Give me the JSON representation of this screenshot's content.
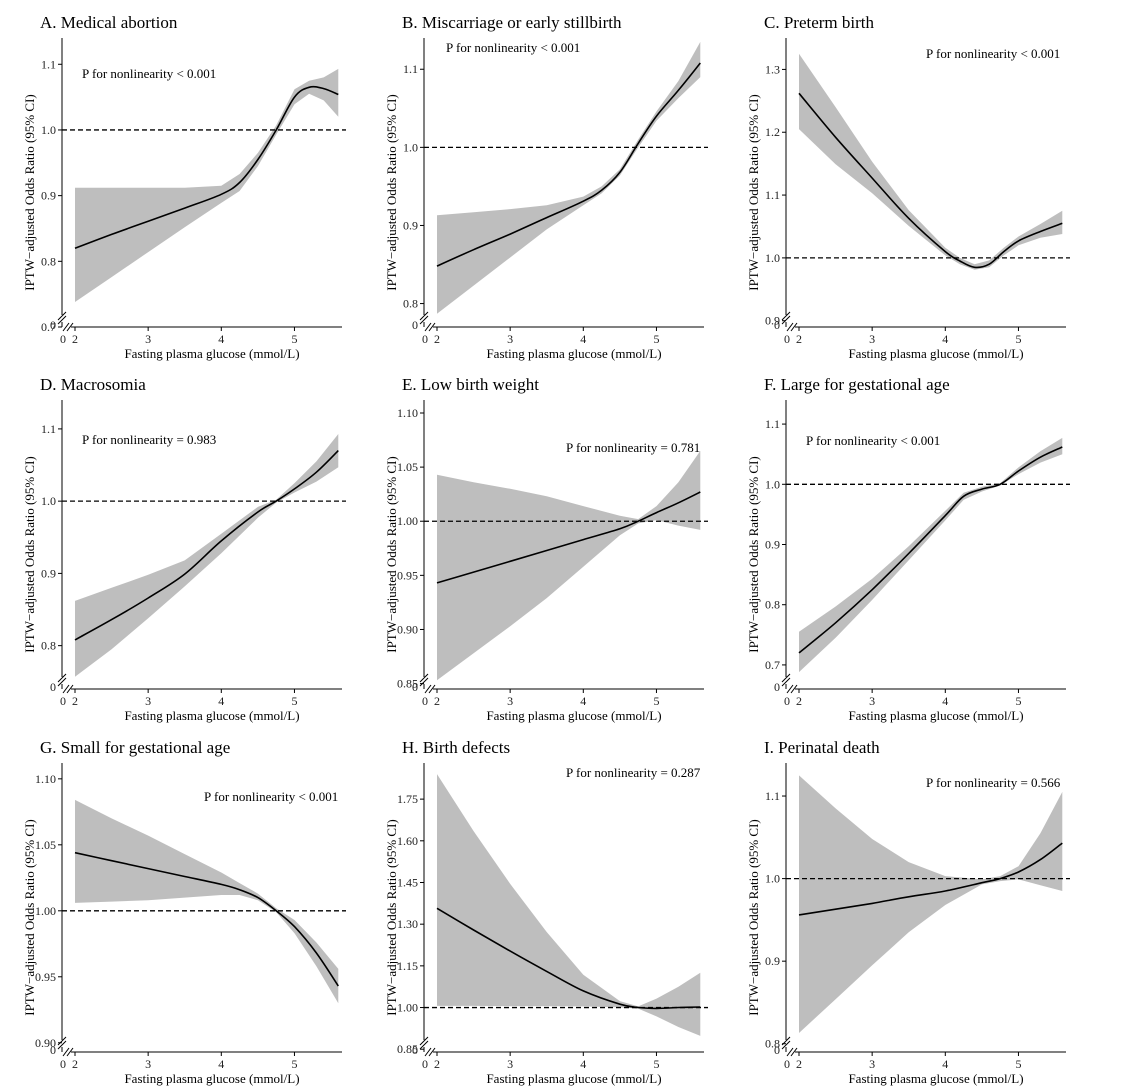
{
  "colors": {
    "band": "#bebebe",
    "line": "#000000",
    "ref_line": "#000000",
    "axis": "#000000"
  },
  "chart_data": [
    {
      "id": "A",
      "type": "line",
      "title": "A. Medical abortion",
      "xlabel": "Fasting plasma glucose (mmol/L)",
      "ylabel": "IPTW−adjusted Odds Ratio (95% CI)",
      "annotation": "P for nonlinearity < 0.001",
      "xlim": [
        2,
        5.65
      ],
      "xticks": [
        2,
        3,
        4,
        5
      ],
      "ylim": [
        0.7,
        1.14
      ],
      "yticks": [
        0.7,
        0.8,
        0.9,
        1.0,
        1.1
      ],
      "ytick_labels": [
        "0.7",
        "0.8",
        "0.9",
        "1.0",
        "1.1"
      ],
      "y_break_label": "0",
      "x_break_label": "0",
      "ref_line": 1.0,
      "x": [
        2.0,
        2.5,
        3.0,
        3.5,
        4.0,
        4.25,
        4.5,
        4.75,
        5.0,
        5.2,
        5.4,
        5.6
      ],
      "y": [
        0.82,
        0.841,
        0.861,
        0.881,
        0.902,
        0.92,
        0.955,
        1.0,
        1.05,
        1.065,
        1.063,
        1.054
      ],
      "lower": [
        0.738,
        0.776,
        0.814,
        0.852,
        0.889,
        0.907,
        0.945,
        0.993,
        1.039,
        1.055,
        1.045,
        1.02
      ],
      "upper": [
        0.912,
        0.912,
        0.912,
        0.912,
        0.915,
        0.933,
        0.965,
        1.007,
        1.062,
        1.075,
        1.08,
        1.093
      ]
    },
    {
      "id": "B",
      "type": "line",
      "title": "B. Miscarriage or early stillbirth",
      "xlabel": "Fasting plasma glucose (mmol/L)",
      "ylabel": "IPTW−adjusted Odds Ratio (95% CI)",
      "annotation": "P for nonlinearity < 0.001",
      "xlim": [
        2,
        5.65
      ],
      "xticks": [
        2,
        3,
        4,
        5
      ],
      "ylim": [
        0.77,
        1.14
      ],
      "yticks": [
        0.8,
        0.9,
        1.0,
        1.1
      ],
      "ytick_labels": [
        "0.8",
        "0.9",
        "1.0",
        "1.1"
      ],
      "y_break_label": "0",
      "x_break_label": "0",
      "ref_line": 1.0,
      "x": [
        2.0,
        2.5,
        3.0,
        3.5,
        4.0,
        4.25,
        4.5,
        4.75,
        5.0,
        5.3,
        5.6
      ],
      "y": [
        0.848,
        0.869,
        0.889,
        0.91,
        0.931,
        0.945,
        0.968,
        1.005,
        1.04,
        1.073,
        1.108
      ],
      "lower": [
        0.787,
        0.823,
        0.859,
        0.895,
        0.926,
        0.941,
        0.964,
        1.0,
        1.034,
        1.063,
        1.09
      ],
      "upper": [
        0.913,
        0.917,
        0.921,
        0.926,
        0.937,
        0.95,
        0.972,
        1.01,
        1.046,
        1.085,
        1.135
      ]
    },
    {
      "id": "C",
      "type": "line",
      "title": "C. Preterm birth",
      "xlabel": "Fasting plasma glucose (mmol/L)",
      "ylabel": "IPTW−adjusted Odds Ratio (95% CI)",
      "annotation": "P for nonlinearity < 0.001",
      "xlim": [
        2,
        5.65
      ],
      "xticks": [
        2,
        3,
        4,
        5
      ],
      "ylim": [
        0.89,
        1.35
      ],
      "yticks": [
        0.9,
        1.0,
        1.1,
        1.2,
        1.3
      ],
      "ytick_labels": [
        "0.9",
        "1.0",
        "1.1",
        "1.2",
        "1.3"
      ],
      "y_break_label": "0",
      "x_break_label": "0",
      "ref_line": 1.0,
      "x": [
        2.0,
        2.5,
        3.0,
        3.5,
        4.0,
        4.2,
        4.4,
        4.6,
        4.8,
        5.0,
        5.3,
        5.6
      ],
      "y": [
        1.262,
        1.192,
        1.127,
        1.063,
        1.01,
        0.995,
        0.985,
        0.99,
        1.01,
        1.027,
        1.042,
        1.055
      ],
      "lower": [
        1.205,
        1.149,
        1.103,
        1.051,
        1.004,
        0.99,
        0.981,
        0.985,
        1.004,
        1.02,
        1.032,
        1.038
      ],
      "upper": [
        1.325,
        1.24,
        1.153,
        1.076,
        1.016,
        1.0,
        0.99,
        0.996,
        1.016,
        1.034,
        1.054,
        1.075
      ]
    },
    {
      "id": "D",
      "type": "line",
      "title": "D. Macrosomia",
      "xlabel": "Fasting plasma glucose (mmol/L)",
      "ylabel": "IPTW−adjusted Odds Ratio (95% CI)",
      "annotation": "P for nonlinearity = 0.983",
      "xlim": [
        2,
        5.65
      ],
      "xticks": [
        2,
        3,
        4,
        5
      ],
      "ylim": [
        0.74,
        1.14
      ],
      "yticks": [
        0.8,
        0.9,
        1.0,
        1.1
      ],
      "ytick_labels": [
        "0.8",
        "0.9",
        "1.0",
        "1.1"
      ],
      "y_break_label": "0",
      "x_break_label": "0",
      "ref_line": 1.0,
      "x": [
        2.0,
        2.5,
        3.0,
        3.5,
        4.0,
        4.5,
        4.75,
        5.0,
        5.3,
        5.6
      ],
      "y": [
        0.808,
        0.836,
        0.866,
        0.899,
        0.945,
        0.985,
        1.0,
        1.017,
        1.04,
        1.07
      ],
      "lower": [
        0.757,
        0.795,
        0.838,
        0.882,
        0.928,
        0.977,
        0.998,
        1.012,
        1.027,
        1.047
      ],
      "upper": [
        0.862,
        0.88,
        0.898,
        0.918,
        0.955,
        0.992,
        1.002,
        1.025,
        1.055,
        1.093
      ]
    },
    {
      "id": "E",
      "type": "line",
      "title": "E. Low birth weight",
      "xlabel": "Fasting plasma glucose (mmol/L)",
      "ylabel": "IPTW−adjusted Odds Ratio (95% CI)",
      "annotation": "P for nonlinearity = 0.781",
      "xlim": [
        2,
        5.65
      ],
      "xticks": [
        2,
        3,
        4,
        5
      ],
      "ylim": [
        0.845,
        1.112
      ],
      "yticks": [
        0.85,
        0.9,
        0.95,
        1.0,
        1.05,
        1.1
      ],
      "ytick_labels": [
        "0.85",
        "0.90",
        "0.95",
        "1.00",
        "1.05",
        "1.10"
      ],
      "y_break_label": "0",
      "x_break_label": "0",
      "ref_line": 1.0,
      "x": [
        2.0,
        2.5,
        3.0,
        3.5,
        4.0,
        4.5,
        4.75,
        5.0,
        5.3,
        5.6
      ],
      "y": [
        0.943,
        0.953,
        0.963,
        0.973,
        0.983,
        0.993,
        1.0,
        1.008,
        1.017,
        1.027
      ],
      "lower": [
        0.853,
        0.878,
        0.903,
        0.929,
        0.958,
        0.987,
        0.998,
        1.001,
        0.996,
        0.992
      ],
      "upper": [
        1.043,
        1.036,
        1.03,
        1.023,
        1.014,
        1.005,
        1.002,
        1.014,
        1.036,
        1.065
      ]
    },
    {
      "id": "F",
      "type": "line",
      "title": "F. Large for gestational age",
      "xlabel": "Fasting plasma glucose (mmol/L)",
      "ylabel": "IPTW−adjusted Odds Ratio (95% CI)",
      "annotation": "P for nonlinearity < 0.001",
      "xlim": [
        2,
        5.65
      ],
      "xticks": [
        2,
        3,
        4,
        5
      ],
      "ylim": [
        0.66,
        1.14
      ],
      "yticks": [
        0.7,
        0.8,
        0.9,
        1.0,
        1.1
      ],
      "ytick_labels": [
        "0.7",
        "0.8",
        "0.9",
        "1.0",
        "1.1"
      ],
      "y_break_label": "0",
      "x_break_label": "0",
      "ref_line": 1.0,
      "x": [
        2.0,
        2.5,
        3.0,
        3.5,
        4.0,
        4.25,
        4.5,
        4.75,
        5.0,
        5.3,
        5.6
      ],
      "y": [
        0.72,
        0.77,
        0.825,
        0.885,
        0.948,
        0.98,
        0.992,
        1.0,
        1.022,
        1.045,
        1.062
      ],
      "lower": [
        0.688,
        0.745,
        0.808,
        0.874,
        0.94,
        0.974,
        0.988,
        0.998,
        1.017,
        1.036,
        1.05
      ],
      "upper": [
        0.755,
        0.797,
        0.843,
        0.897,
        0.956,
        0.986,
        0.996,
        1.002,
        1.028,
        1.055,
        1.077
      ]
    },
    {
      "id": "G",
      "type": "line",
      "title": "G. Small for gestational age",
      "xlabel": "Fasting plasma glucose (mmol/L)",
      "ylabel": "IPTW−adjusted Odds Ratio (95% CI)",
      "annotation": "P for nonlinearity < 0.001",
      "xlim": [
        2,
        5.65
      ],
      "xticks": [
        2,
        3,
        4,
        5
      ],
      "ylim": [
        0.893,
        1.112
      ],
      "yticks": [
        0.9,
        0.95,
        1.0,
        1.05,
        1.1
      ],
      "ytick_labels": [
        "0.90",
        "0.95",
        "1.00",
        "1.05",
        "1.10"
      ],
      "y_break_label": "0",
      "x_break_label": "0",
      "ref_line": 1.0,
      "x": [
        2.0,
        2.5,
        3.0,
        3.5,
        4.0,
        4.25,
        4.5,
        4.75,
        5.0,
        5.3,
        5.6
      ],
      "y": [
        1.044,
        1.038,
        1.032,
        1.026,
        1.02,
        1.016,
        1.01,
        1.0,
        0.988,
        0.968,
        0.943
      ],
      "lower": [
        1.006,
        1.007,
        1.008,
        1.01,
        1.012,
        1.012,
        1.008,
        0.999,
        0.983,
        0.958,
        0.93
      ],
      "upper": [
        1.084,
        1.07,
        1.057,
        1.043,
        1.029,
        1.021,
        1.013,
        1.002,
        0.993,
        0.976,
        0.956
      ]
    },
    {
      "id": "H",
      "type": "line",
      "title": "H. Birth defects",
      "xlabel": "Fasting plasma glucose (mmol/L)",
      "ylabel": "IPTW−adjusted Odds Ratio (95% CI)",
      "annotation": "P for nonlinearity = 0.287",
      "xlim": [
        2,
        5.65
      ],
      "xticks": [
        2,
        3,
        4,
        5
      ],
      "ylim": [
        0.84,
        1.88
      ],
      "yticks": [
        0.85,
        1.0,
        1.15,
        1.3,
        1.45,
        1.6,
        1.75
      ],
      "ytick_labels": [
        "0.85",
        "1.00",
        "1.15",
        "1.30",
        "1.45",
        "1.60",
        "1.75"
      ],
      "y_break_label": "0",
      "x_break_label": "0",
      "ref_line": 1.0,
      "x": [
        2.0,
        2.5,
        3.0,
        3.5,
        4.0,
        4.5,
        4.75,
        5.0,
        5.3,
        5.6
      ],
      "y": [
        1.357,
        1.279,
        1.203,
        1.13,
        1.06,
        1.012,
        1.0,
        0.997,
        1.0,
        1.002
      ],
      "lower": [
        1.006,
        1.006,
        1.005,
        1.005,
        1.004,
        1.001,
        0.996,
        0.968,
        0.93,
        0.898
      ],
      "upper": [
        1.84,
        1.635,
        1.445,
        1.272,
        1.118,
        1.023,
        1.004,
        1.032,
        1.075,
        1.125
      ]
    },
    {
      "id": "I",
      "type": "line",
      "title": "I. Perinatal death",
      "xlabel": "Fasting plasma glucose (mmol/L)",
      "ylabel": "IPTW−adjusted Odds Ratio (95% CI)",
      "annotation": "P for nonlinearity = 0.566",
      "xlim": [
        2,
        5.65
      ],
      "xticks": [
        2,
        3,
        4,
        5
      ],
      "ylim": [
        0.79,
        1.14
      ],
      "yticks": [
        0.8,
        0.9,
        1.0,
        1.1
      ],
      "ytick_labels": [
        "0.8",
        "0.9",
        "1.0",
        "1.1"
      ],
      "y_break_label": "0",
      "x_break_label": "0",
      "ref_line": 1.0,
      "x": [
        2.0,
        2.5,
        3.0,
        3.5,
        4.0,
        4.5,
        4.75,
        5.0,
        5.3,
        5.6
      ],
      "y": [
        0.956,
        0.963,
        0.97,
        0.978,
        0.985,
        0.995,
        1.0,
        1.008,
        1.023,
        1.043
      ],
      "lower": [
        0.813,
        0.854,
        0.895,
        0.935,
        0.968,
        0.993,
        0.997,
        0.999,
        0.992,
        0.985
      ],
      "upper": [
        1.125,
        1.085,
        1.048,
        1.02,
        1.003,
        0.999,
        1.003,
        1.015,
        1.055,
        1.105
      ]
    }
  ]
}
